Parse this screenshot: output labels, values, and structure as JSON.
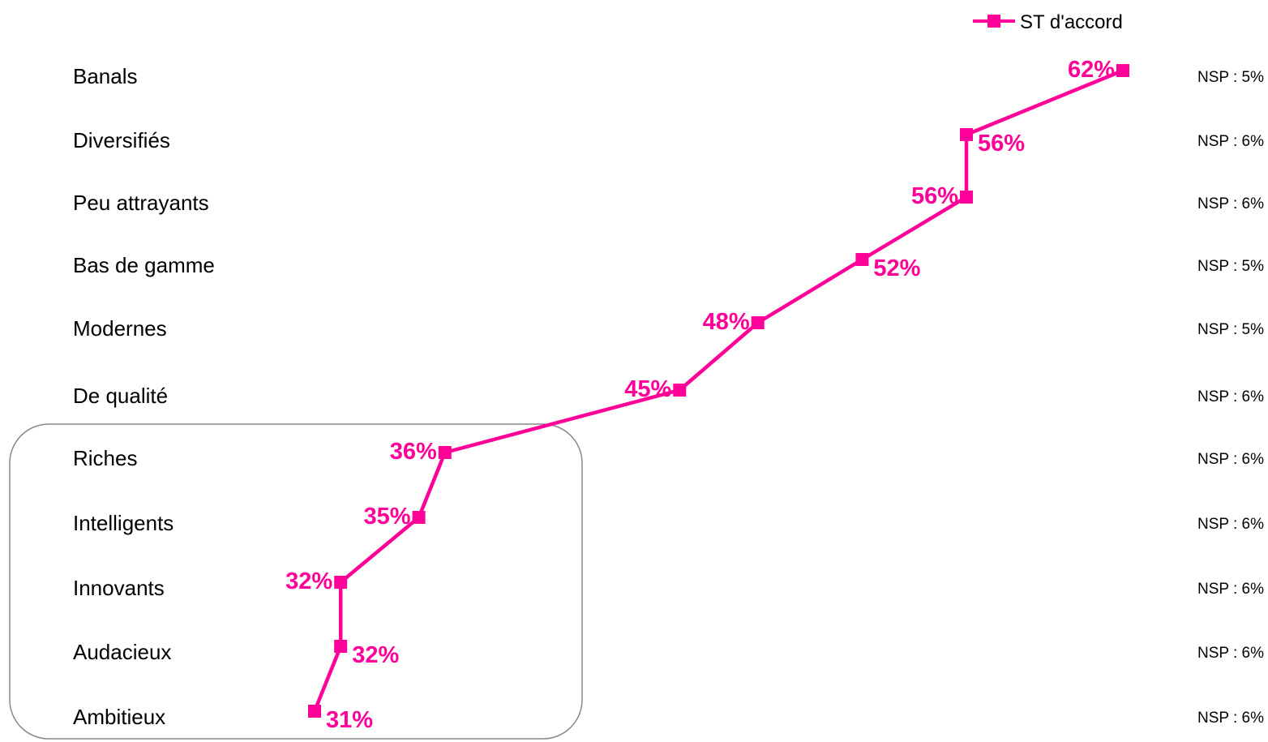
{
  "colors": {
    "series": "#FF0099",
    "frame": "#888888"
  },
  "legend": {
    "label": "ST d'accord",
    "placement": "top-right"
  },
  "chart_data": {
    "type": "line",
    "orientation": "horizontal",
    "categories": [
      "Banals",
      "Diversifiés",
      "Peu attrayants",
      "Bas de gamme",
      "Modernes",
      "De qualité",
      "Riches",
      "Intelligents",
      "Innovants",
      "Audacieux",
      "Ambitieux"
    ],
    "series": [
      {
        "name": "ST d'accord",
        "values": [
          62,
          56,
          56,
          52,
          48,
          45,
          36,
          35,
          32,
          32,
          31
        ]
      }
    ],
    "value_labels": [
      "62%",
      "56%",
      "56%",
      "52%",
      "48%",
      "45%",
      "36%",
      "35%",
      "32%",
      "32%",
      "31%"
    ],
    "nsp_labels": [
      "NSP : 5%",
      "NSP : 6%",
      "NSP : 6%",
      "NSP : 5%",
      "NSP : 5%",
      "NSP : 6%",
      "NSP : 6%",
      "NSP : 6%",
      "NSP : 6%",
      "NSP : 6%",
      "NSP : 6%"
    ],
    "xlim": [
      20,
      70
    ],
    "grid": false,
    "highlight_group": [
      "Riches",
      "Intelligents",
      "Innovants",
      "Audacieux",
      "Ambitieux"
    ]
  }
}
